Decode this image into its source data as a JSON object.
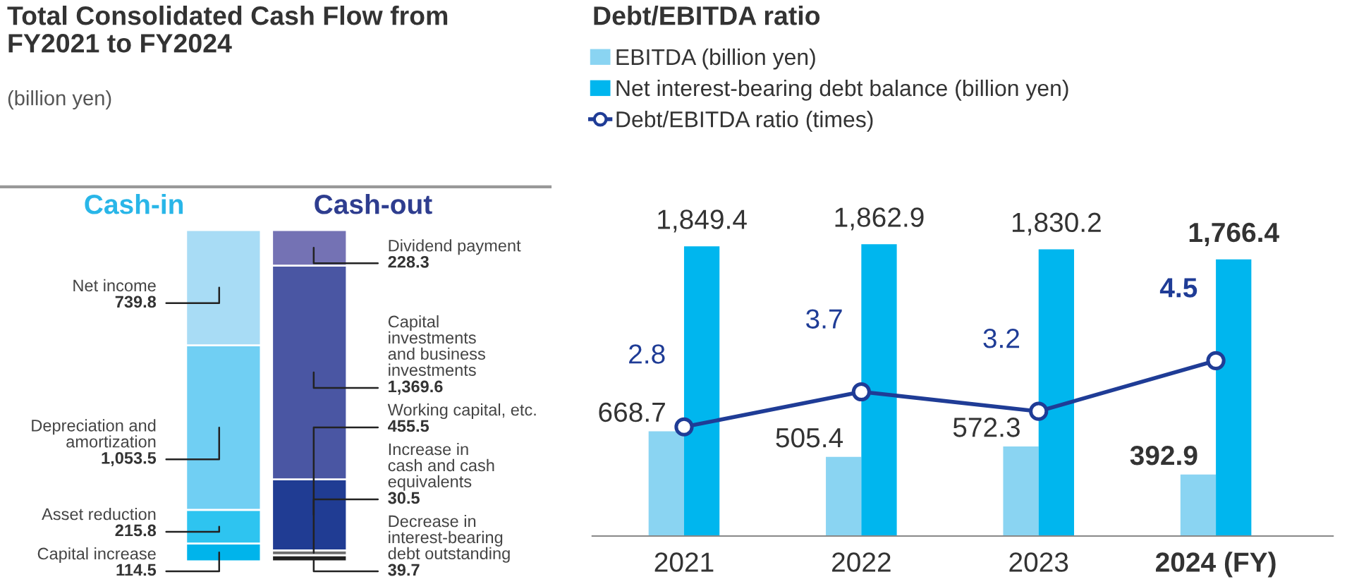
{
  "chart_data": [
    {
      "type": "bar",
      "title": "Total Consolidated Cash Flow from\nFY2021 to FY2024",
      "subtitle": "(billion yen)",
      "categories": [
        "Cash-in",
        "Cash-out"
      ],
      "stacked": true,
      "grid": false,
      "tick_labels": "x",
      "series": [
        {
          "name": "Capital increase",
          "color": "#00b4eb",
          "values": [
            114.5,
            null
          ],
          "value_labels": [
            "114.5",
            null
          ]
        },
        {
          "name": "Asset reduction",
          "color": "#2ec4f0",
          "values": [
            215.8,
            null
          ],
          "value_labels": [
            "215.8",
            null
          ]
        },
        {
          "name": "Depreciation and\namortization",
          "color": "#70cff3",
          "values": [
            1053.5,
            null
          ],
          "value_labels": [
            "1,053.5",
            null
          ]
        },
        {
          "name": "Net income",
          "color": "#a8dcf5",
          "values": [
            739.8,
            null
          ],
          "value_labels": [
            "739.8",
            null
          ]
        },
        {
          "name": "Decrease in\ninterest-bearing\ndebt outstanding",
          "color": "#222222",
          "values": [
            null,
            39.7
          ],
          "value_labels": [
            null,
            "39.7"
          ]
        },
        {
          "name": "Increase in\ncash and cash\nequivalents",
          "color": "#6f6f6f",
          "values": [
            null,
            30.5
          ],
          "value_labels": [
            null,
            "30.5"
          ]
        },
        {
          "name": "Working capital, etc.",
          "color": "#203c93",
          "values": [
            null,
            455.5
          ],
          "value_labels": [
            null,
            "455.5"
          ]
        },
        {
          "name": "Capital\ninvestments\nand business\ninvestments",
          "color": "#4a56a3",
          "values": [
            null,
            1369.6
          ],
          "value_labels": [
            null,
            "1,369.6"
          ]
        },
        {
          "name": "Dividend payment",
          "color": "#7472b4",
          "values": [
            null,
            228.3
          ],
          "value_labels": [
            null,
            "228.3"
          ]
        }
      ]
    },
    {
      "type": "bar",
      "title": "Debt/EBITDA ratio",
      "categories": [
        "2021",
        "2022",
        "2023",
        "2024 (FY)"
      ],
      "legend": "top left",
      "grid": false,
      "tick_labels": "x",
      "series": [
        {
          "name": "EBITDA (billion yen)",
          "color": "#8ad4f2",
          "values": [
            668.7,
            505.4,
            572.3,
            392.9
          ],
          "value_labels": [
            "668.7",
            "505.4",
            "572.3",
            "392.9"
          ]
        },
        {
          "name": "Net interest-bearing debt balance (billion yen)",
          "color": "#00b6ee",
          "values": [
            1849.4,
            1862.9,
            1830.2,
            1766.4
          ],
          "value_labels": [
            "1,849.4",
            "1,862.9",
            "1,830.2",
            "1,766.4"
          ]
        },
        {
          "name": "Debt/EBITDA ratio (times)",
          "type": "line",
          "axis": "y2",
          "marker": "circle",
          "line_style": "solid",
          "color": "#1f3c96",
          "values": [
            2.8,
            3.7,
            3.2,
            4.5
          ],
          "value_labels": [
            "2.8",
            "3.7",
            "3.2",
            "4.5"
          ]
        }
      ]
    }
  ]
}
